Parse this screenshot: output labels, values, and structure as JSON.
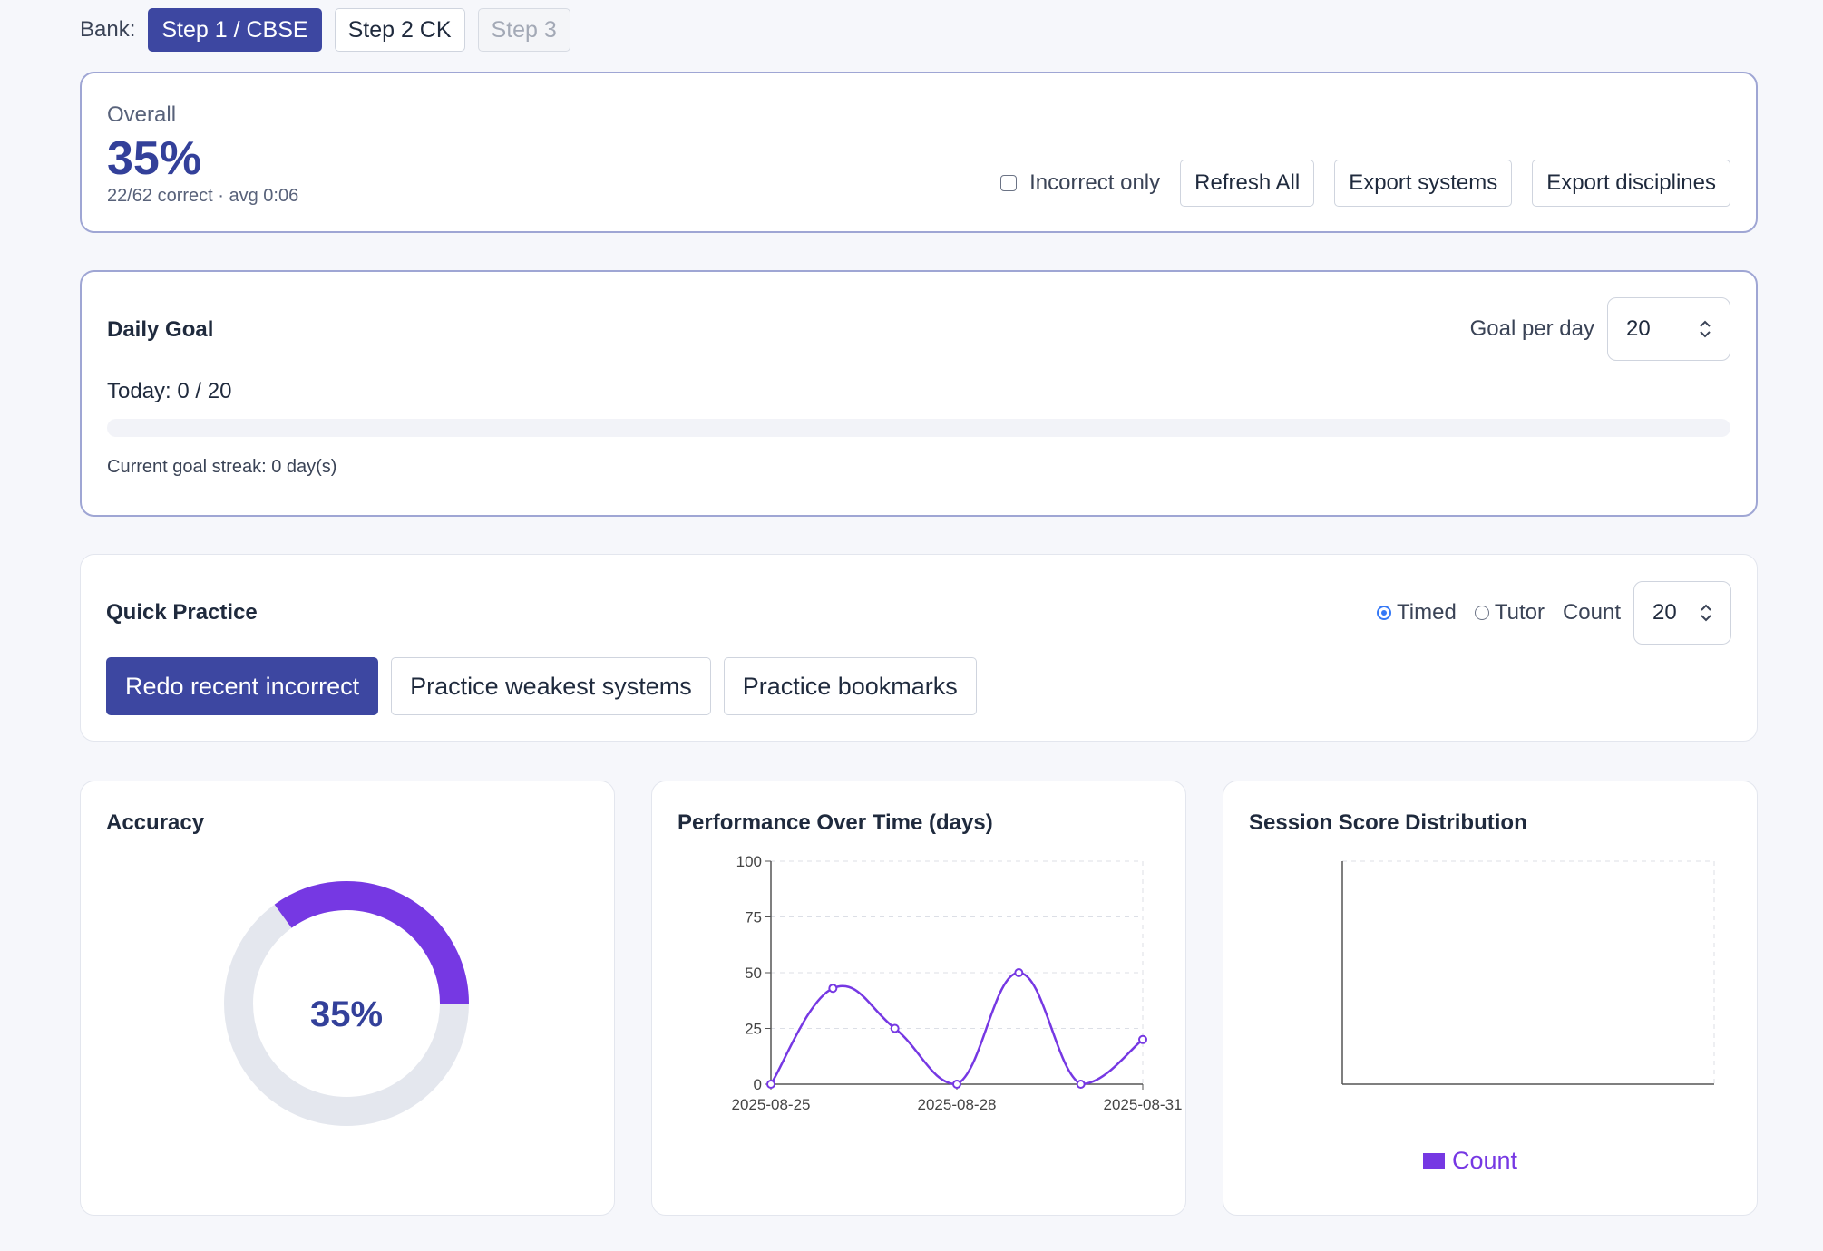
{
  "bank": {
    "label": "Bank:",
    "options": [
      {
        "label": "Step 1 / CBSE",
        "state": "active"
      },
      {
        "label": "Step 2 CK",
        "state": "normal"
      },
      {
        "label": "Step 3",
        "state": "disabled"
      }
    ]
  },
  "overall": {
    "label": "Overall",
    "value": "35%",
    "sub": "22/62 correct · avg 0:06",
    "incorrect_only_label": "Incorrect only",
    "incorrect_only_checked": false,
    "refresh_label": "Refresh All",
    "export_systems_label": "Export systems",
    "export_disciplines_label": "Export disciplines"
  },
  "daily_goal": {
    "title": "Daily Goal",
    "goal_label": "Goal per day",
    "goal_value": "20",
    "today_text": "Today: 0 / 20",
    "progress": 0,
    "streak_text": "Current goal streak: 0 day(s)"
  },
  "quick_practice": {
    "title": "Quick Practice",
    "timed_label": "Timed",
    "tutor_label": "Tutor",
    "mode": "timed",
    "count_label": "Count",
    "count_value": "20",
    "buttons": {
      "redo": "Redo recent incorrect",
      "weakest": "Practice weakest systems",
      "bookmarks": "Practice bookmarks"
    }
  },
  "accuracy": {
    "title": "Accuracy",
    "value_label": "35%",
    "percent": 35,
    "colors": {
      "fill": "#7638e3",
      "track": "#e4e7ee",
      "text": "#33409a"
    }
  },
  "chart_data": [
    {
      "type": "line",
      "title": "Performance Over Time (days)",
      "x": [
        "2025-08-25",
        "2025-08-26",
        "2025-08-27",
        "2025-08-28",
        "2025-08-29",
        "2025-08-30",
        "2025-08-31"
      ],
      "y": [
        0,
        43,
        25,
        0,
        50,
        0,
        20
      ],
      "ylim": [
        0,
        100
      ],
      "yticks": [
        0,
        25,
        50,
        75,
        100
      ],
      "xtick_labels": [
        "2025-08-25",
        "2025-08-28",
        "2025-08-31"
      ],
      "grid": true,
      "color": "#7638e3"
    },
    {
      "type": "bar",
      "title": "Session Score Distribution",
      "categories": [],
      "series": [
        {
          "name": "Count",
          "values": []
        }
      ],
      "legend": "bottom",
      "color": "#7638e3"
    }
  ]
}
